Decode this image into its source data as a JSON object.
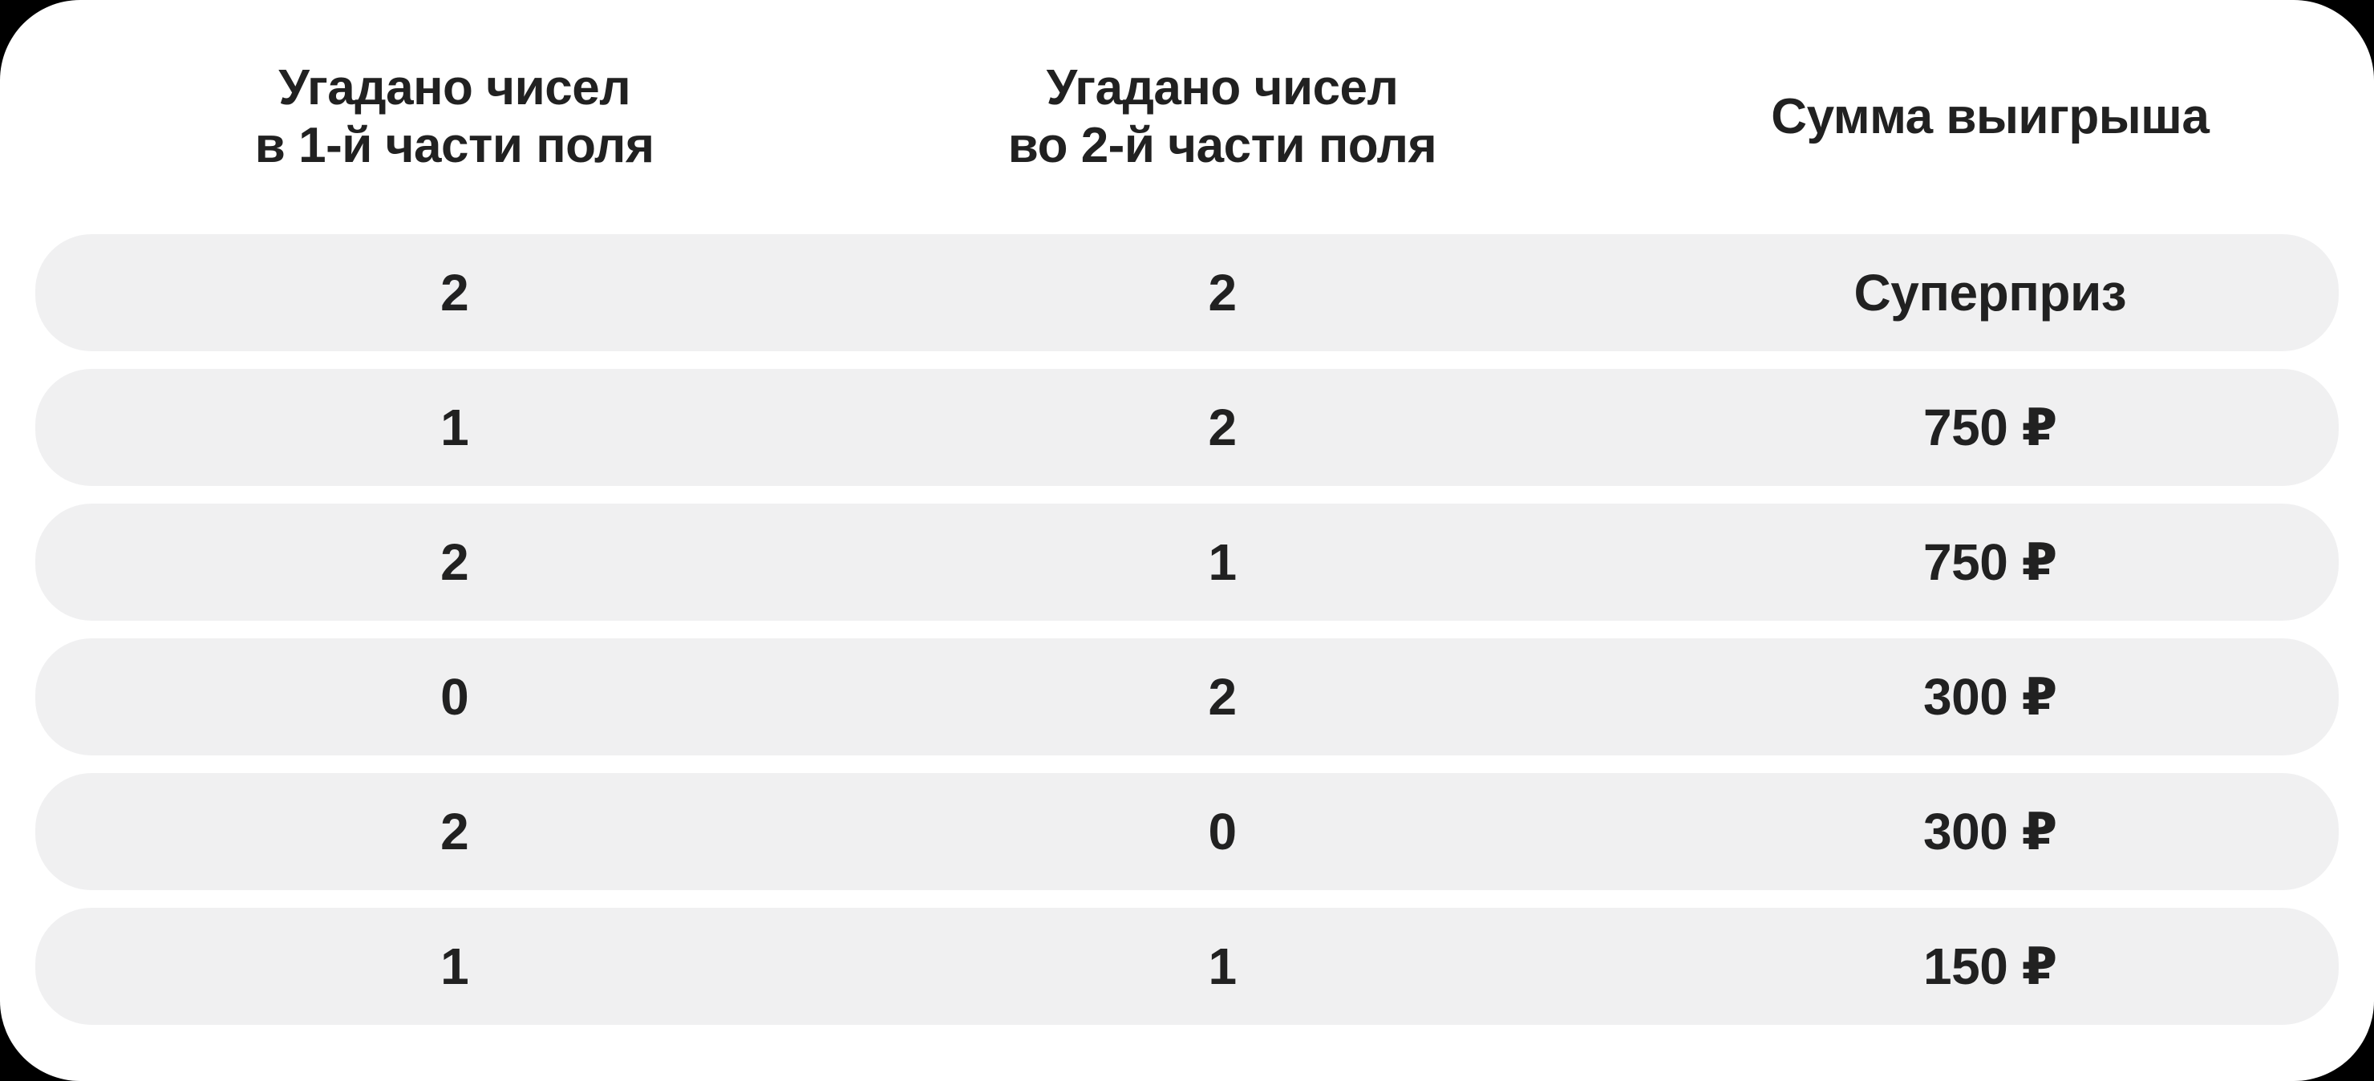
{
  "theme": {
    "page_background": "#000000",
    "card_background": "#ffffff",
    "row_background": "#f0f0f1",
    "text_color": "#212121"
  },
  "prize_table": {
    "columns": [
      {
        "id": "field1",
        "label_lines": [
          "Угадано чисел",
          "в 1-й части поля"
        ]
      },
      {
        "id": "field2",
        "label_lines": [
          "Угадано чисел",
          "во 2-й части поля"
        ]
      },
      {
        "id": "prize",
        "label_lines": [
          "Сумма выигрыша"
        ]
      }
    ],
    "rows": [
      {
        "field1": "2",
        "field2": "2",
        "prize": "Суперприз"
      },
      {
        "field1": "1",
        "field2": "2",
        "prize": "750 ₽"
      },
      {
        "field1": "2",
        "field2": "1",
        "prize": "750 ₽"
      },
      {
        "field1": "0",
        "field2": "2",
        "prize": "300 ₽"
      },
      {
        "field1": "2",
        "field2": "0",
        "prize": "300 ₽"
      },
      {
        "field1": "1",
        "field2": "1",
        "prize": "150 ₽"
      }
    ]
  }
}
